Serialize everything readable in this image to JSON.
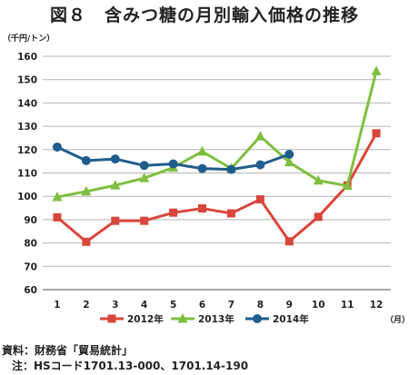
{
  "title": "図８　含みつ糖の月別輸入価格の推移",
  "source": "資料：財務省「貿易統計」",
  "note": "注：HSコード1701.13-000、1701.14-190",
  "chart_data": {
    "type": "line",
    "ylabel": "（千円/トン）",
    "xlabel": "（月）",
    "x": [
      "1",
      "2",
      "3",
      "4",
      "5",
      "6",
      "7",
      "8",
      "9",
      "10",
      "11",
      "12"
    ],
    "ylim": [
      60,
      160
    ],
    "yticks": [
      60,
      70,
      80,
      90,
      100,
      110,
      120,
      130,
      140,
      150,
      160
    ],
    "grid": true,
    "legend_position": "bottom",
    "series": [
      {
        "name": "2012年",
        "color": "#d9463b",
        "marker": "square",
        "values": [
          91,
          80.5,
          89.5,
          89.5,
          93,
          94.8,
          92.7,
          98.7,
          80.7,
          91.2,
          104.7,
          127
        ]
      },
      {
        "name": "2013年",
        "color": "#7fbf3f",
        "marker": "triangle",
        "values": [
          99.7,
          102.1,
          104.7,
          107.8,
          112.3,
          119.2,
          111.9,
          125.7,
          114.6,
          106.8,
          104.5,
          153.7
        ]
      },
      {
        "name": "2014年",
        "color": "#1f5d8c",
        "marker": "circle",
        "values": [
          121.1,
          115.3,
          116,
          113.2,
          113.9,
          111.9,
          111.5,
          113.5,
          118,
          null,
          null,
          null
        ]
      }
    ]
  }
}
